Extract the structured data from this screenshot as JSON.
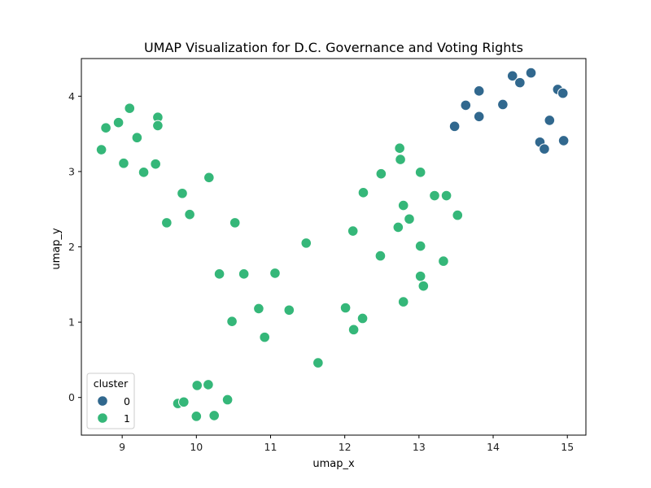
{
  "chart_data": {
    "type": "scatter",
    "title": "UMAP Visualization for D.C. Governance and Voting Rights",
    "xlabel": "umap_x",
    "ylabel": "umap_y",
    "xlim": [
      8.45,
      15.25
    ],
    "ylim": [
      -0.5,
      4.5
    ],
    "xticks": [
      9,
      10,
      11,
      12,
      13,
      14,
      15
    ],
    "yticks": [
      0,
      1,
      2,
      3,
      4
    ],
    "grid": false,
    "legend": {
      "title": "cluster",
      "placement": "lower-left"
    },
    "series": [
      {
        "name": "0",
        "color": "#31688e",
        "points": [
          [
            13.48,
            3.6
          ],
          [
            13.63,
            3.88
          ],
          [
            13.81,
            4.07
          ],
          [
            13.81,
            3.73
          ],
          [
            14.13,
            3.89
          ],
          [
            14.26,
            4.27
          ],
          [
            14.36,
            4.18
          ],
          [
            14.51,
            4.31
          ],
          [
            14.63,
            3.39
          ],
          [
            14.69,
            3.3
          ],
          [
            14.76,
            3.68
          ],
          [
            14.87,
            4.09
          ],
          [
            14.94,
            4.04
          ],
          [
            14.95,
            3.41
          ]
        ]
      },
      {
        "name": "1",
        "color": "#35b779",
        "points": [
          [
            8.72,
            3.29
          ],
          [
            8.78,
            3.58
          ],
          [
            8.95,
            3.65
          ],
          [
            9.02,
            3.11
          ],
          [
            9.1,
            3.84
          ],
          [
            9.2,
            3.45
          ],
          [
            9.29,
            2.99
          ],
          [
            9.45,
            3.1
          ],
          [
            9.48,
            3.72
          ],
          [
            9.48,
            3.61
          ],
          [
            9.6,
            2.32
          ],
          [
            9.81,
            2.71
          ],
          [
            9.91,
            2.43
          ],
          [
            10.17,
            2.92
          ],
          [
            10.52,
            2.32
          ],
          [
            10.31,
            1.64
          ],
          [
            10.64,
            1.64
          ],
          [
            11.06,
            1.65
          ],
          [
            10.48,
            1.01
          ],
          [
            10.84,
            1.18
          ],
          [
            10.92,
            0.8
          ],
          [
            11.25,
            1.16
          ],
          [
            11.48,
            2.05
          ],
          [
            11.64,
            0.46
          ],
          [
            12.01,
            1.19
          ],
          [
            12.11,
            2.21
          ],
          [
            12.12,
            0.9
          ],
          [
            12.24,
            1.05
          ],
          [
            12.25,
            2.72
          ],
          [
            12.48,
            1.88
          ],
          [
            12.49,
            2.97
          ],
          [
            12.72,
            2.26
          ],
          [
            12.74,
            3.31
          ],
          [
            12.75,
            3.16
          ],
          [
            12.79,
            2.55
          ],
          [
            12.79,
            1.27
          ],
          [
            12.87,
            2.37
          ],
          [
            13.02,
            2.99
          ],
          [
            13.02,
            2.01
          ],
          [
            13.02,
            1.61
          ],
          [
            13.06,
            1.48
          ],
          [
            13.21,
            2.68
          ],
          [
            13.33,
            1.81
          ],
          [
            13.37,
            2.68
          ],
          [
            13.52,
            2.42
          ],
          [
            9.75,
            -0.08
          ],
          [
            9.83,
            -0.06
          ],
          [
            10.01,
            0.16
          ],
          [
            10.16,
            0.17
          ],
          [
            10.0,
            -0.25
          ],
          [
            10.24,
            -0.24
          ],
          [
            10.42,
            -0.03
          ]
        ]
      }
    ]
  }
}
